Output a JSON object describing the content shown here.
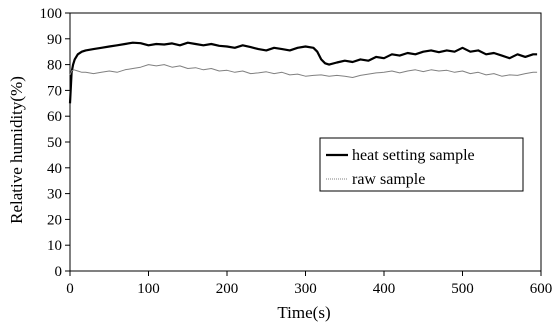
{
  "chart_data": {
    "type": "line",
    "title": "",
    "xlabel": "Time(s)",
    "ylabel": "Relative humidity(%)",
    "xlim": [
      0,
      600
    ],
    "ylim": [
      0,
      100
    ],
    "xticks": [
      0,
      100,
      200,
      300,
      400,
      500,
      600
    ],
    "yticks": [
      0,
      10,
      20,
      30,
      40,
      50,
      60,
      70,
      80,
      90,
      100
    ],
    "grid": false,
    "legend": "center-right",
    "series": [
      {
        "name": "heat setting sample",
        "color": "#000000",
        "style": "solid-thick",
        "x": [
          0,
          2,
          4,
          6,
          10,
          15,
          20,
          30,
          40,
          50,
          60,
          70,
          80,
          90,
          100,
          110,
          120,
          130,
          140,
          150,
          160,
          170,
          180,
          190,
          200,
          210,
          220,
          230,
          240,
          250,
          260,
          270,
          280,
          290,
          300,
          310,
          315,
          320,
          325,
          330,
          340,
          350,
          360,
          370,
          380,
          390,
          400,
          410,
          420,
          430,
          440,
          450,
          460,
          470,
          480,
          490,
          500,
          510,
          520,
          530,
          540,
          550,
          560,
          570,
          580,
          590,
          595
        ],
        "y": [
          65,
          77,
          80,
          82,
          84,
          85,
          85.5,
          86,
          86.5,
          87,
          87.5,
          88,
          88.5,
          88.3,
          87.5,
          88,
          87.8,
          88.2,
          87.5,
          88.5,
          88,
          87.5,
          88,
          87.3,
          87,
          86.5,
          87.5,
          86.8,
          86,
          85.5,
          86.5,
          86,
          85.5,
          86.5,
          87,
          86.5,
          85,
          82,
          80.5,
          80,
          80.8,
          81.5,
          81,
          82,
          81.5,
          83,
          82.5,
          84,
          83.5,
          84.5,
          84,
          85,
          85.5,
          84.8,
          85.5,
          85,
          86.5,
          85,
          85.5,
          84,
          84.5,
          83.5,
          82.5,
          84,
          83,
          84,
          84
        ]
      },
      {
        "name": "raw sample",
        "color": "#808080",
        "style": "thin",
        "x": [
          0,
          2,
          5,
          10,
          15,
          20,
          30,
          40,
          50,
          60,
          70,
          80,
          90,
          100,
          110,
          120,
          130,
          140,
          150,
          160,
          170,
          180,
          190,
          200,
          210,
          220,
          230,
          240,
          250,
          260,
          270,
          280,
          290,
          300,
          310,
          320,
          330,
          340,
          350,
          360,
          370,
          380,
          390,
          400,
          410,
          420,
          430,
          440,
          450,
          460,
          470,
          480,
          490,
          500,
          510,
          520,
          530,
          540,
          550,
          560,
          570,
          580,
          590,
          595
        ],
        "y": [
          76,
          77.5,
          78,
          77.5,
          77,
          77,
          76.5,
          77,
          77.5,
          77,
          78,
          78.5,
          79,
          80,
          79.5,
          80,
          79,
          79.5,
          78.5,
          78.8,
          78,
          78.5,
          77.5,
          77.8,
          77,
          77.5,
          76.5,
          76.8,
          77.2,
          76.5,
          77,
          76,
          76.3,
          75.5,
          75.8,
          76,
          75.5,
          75.8,
          75.5,
          75,
          75.8,
          76.3,
          76.8,
          77,
          77.5,
          76.8,
          77.5,
          78,
          77.3,
          78,
          77.5,
          77.8,
          77,
          77.5,
          76.5,
          77,
          76,
          76.5,
          75.5,
          76,
          75.8,
          76.5,
          77,
          77
        ]
      }
    ]
  }
}
